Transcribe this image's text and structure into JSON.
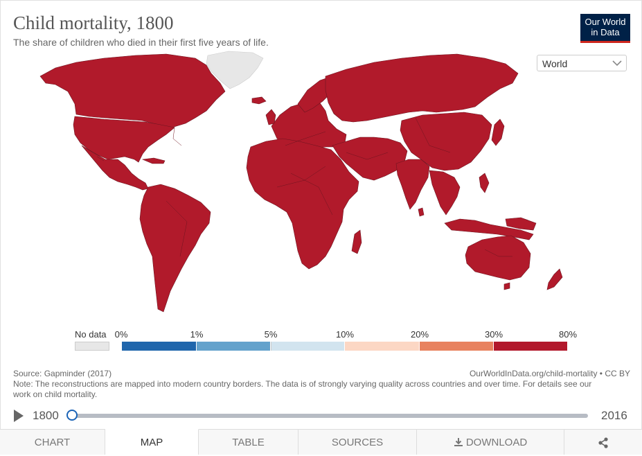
{
  "header": {
    "title": "Child mortality, 1800",
    "subtitle": "The share of children who died in their first five years of life."
  },
  "logo": {
    "line1": "Our World",
    "line2": "in Data"
  },
  "entity_selector": {
    "value": "World",
    "icon": "chevron-down-icon"
  },
  "map": {
    "fill_color": "#b11a2b",
    "nodata_color": "#e7e7e7",
    "border_color": "#666666"
  },
  "legend": {
    "nodata_label": "No data",
    "tick_labels": [
      "0%",
      "1%",
      "5%",
      "10%",
      "20%",
      "30%",
      "80%"
    ],
    "bin_colors": [
      "#2066ac",
      "#64a2cc",
      "#d2e4ef",
      "#fcd7c4",
      "#e8825f",
      "#b2182b"
    ]
  },
  "footer": {
    "source": "Source: Gapminder (2017)",
    "url": "OurWorldInData.org/child-mortality • CC BY",
    "note": "Note: The reconstructions are mapped into modern country borders. The data is of strongly varying quality across countries and over time. For details see our work on child mortality."
  },
  "timeline": {
    "start_year": "1800",
    "end_year": "2016",
    "selected_year": 1800
  },
  "tabs": [
    {
      "label": "CHART"
    },
    {
      "label": "MAP"
    },
    {
      "label": "TABLE"
    },
    {
      "label": "SOURCES"
    },
    {
      "label": "DOWNLOAD"
    }
  ],
  "colors": {
    "accent": "#1a63b6",
    "brand_navy": "#002147",
    "brand_red": "#ce261e"
  }
}
